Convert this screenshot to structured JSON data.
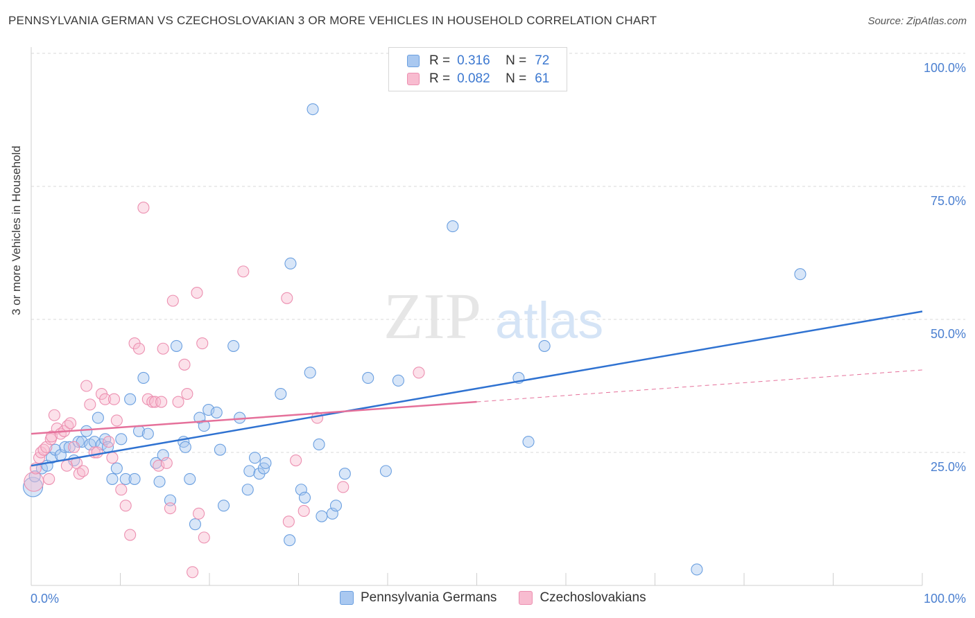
{
  "header": {
    "title": "PENNSYLVANIA GERMAN VS CZECHOSLOVAKIAN 3 OR MORE VEHICLES IN HOUSEHOLD CORRELATION CHART",
    "source": "Source: ZipAtlas.com"
  },
  "watermark": {
    "zip": "ZIP",
    "atlas": "atlas"
  },
  "legend": {
    "r_label": "R =",
    "n_label": "N =",
    "blue": {
      "r": "0.316",
      "n": "72"
    },
    "pink": {
      "r": "0.082",
      "n": "61"
    }
  },
  "colors": {
    "blue_fill": "#a9c8f0",
    "blue_stroke": "#6a9fe0",
    "blue_line": "#2f72d1",
    "pink_fill": "#f8bcd0",
    "pink_stroke": "#ec8fb0",
    "pink_line": "#e5709a",
    "grid": "#d9d9d9",
    "tick_text": "#4a7fd0"
  },
  "chart_data": {
    "type": "scatter",
    "title": "PENNSYLVANIA GERMAN VS CZECHOSLOVAKIAN 3 OR MORE VEHICLES IN HOUSEHOLD CORRELATION CHART",
    "ylabel": "3 or more Vehicles in Household",
    "xlabel": "",
    "xlim": [
      0,
      100
    ],
    "ylim": [
      0,
      100
    ],
    "x_ticks": [
      "0.0%",
      "100.0%"
    ],
    "y_ticks": [
      "25.0%",
      "50.0%",
      "75.0%",
      "100.0%"
    ],
    "grid": true,
    "legend_position": "bottom-center",
    "series": [
      {
        "name": "Pennsylvania Germans",
        "color": "#a9c8f0",
        "points": [
          [
            0.2,
            18.5
          ],
          [
            0.4,
            20.5
          ],
          [
            1.2,
            22
          ],
          [
            1.8,
            22.5
          ],
          [
            2.3,
            24
          ],
          [
            2.7,
            25.5
          ],
          [
            3.3,
            24.5
          ],
          [
            3.8,
            26
          ],
          [
            4.3,
            26
          ],
          [
            4.8,
            23.5
          ],
          [
            5.3,
            27
          ],
          [
            5.7,
            27
          ],
          [
            6.2,
            29
          ],
          [
            6.6,
            26.5
          ],
          [
            7.1,
            27
          ],
          [
            7.5,
            31.5
          ],
          [
            7.9,
            26.5
          ],
          [
            8.3,
            27.5
          ],
          [
            8.6,
            26
          ],
          [
            9.1,
            20
          ],
          [
            9.6,
            22
          ],
          [
            10.1,
            27.5
          ],
          [
            10.6,
            20
          ],
          [
            11.1,
            35
          ],
          [
            11.6,
            20
          ],
          [
            12.1,
            29
          ],
          [
            12.6,
            39
          ],
          [
            13.1,
            28.5
          ],
          [
            14,
            23
          ],
          [
            14.4,
            19.5
          ],
          [
            14.8,
            24.5
          ],
          [
            15.6,
            16
          ],
          [
            16.3,
            45
          ],
          [
            17.1,
            27
          ],
          [
            17.3,
            26
          ],
          [
            17.8,
            20
          ],
          [
            18.4,
            11.5
          ],
          [
            18.9,
            31.5
          ],
          [
            19.4,
            30
          ],
          [
            19.9,
            33
          ],
          [
            20.8,
            32.5
          ],
          [
            21.2,
            25.5
          ],
          [
            21.6,
            15
          ],
          [
            22.7,
            45
          ],
          [
            23.4,
            31.5
          ],
          [
            24.3,
            18
          ],
          [
            24.5,
            21.5
          ],
          [
            25.1,
            24
          ],
          [
            25.6,
            21
          ],
          [
            26.1,
            22
          ],
          [
            26.3,
            23
          ],
          [
            28,
            36
          ],
          [
            29,
            8.5
          ],
          [
            29.1,
            60.5
          ],
          [
            30.3,
            18
          ],
          [
            30.7,
            16.5
          ],
          [
            31.3,
            40
          ],
          [
            31.6,
            89.5
          ],
          [
            32.3,
            26.5
          ],
          [
            32.6,
            13
          ],
          [
            33.8,
            13.5
          ],
          [
            34.2,
            15
          ],
          [
            35.2,
            21
          ],
          [
            37.8,
            39
          ],
          [
            39.8,
            21.5
          ],
          [
            41.2,
            38.5
          ],
          [
            47.3,
            67.5
          ],
          [
            54.7,
            39
          ],
          [
            55.8,
            27
          ],
          [
            57.6,
            45
          ],
          [
            74.7,
            3
          ],
          [
            86.3,
            58.5
          ]
        ]
      },
      {
        "name": "Czechoslovakians",
        "color": "#f8bcd0",
        "points": [
          [
            0.3,
            19.5
          ],
          [
            0.5,
            22
          ],
          [
            0.9,
            24
          ],
          [
            1.1,
            25
          ],
          [
            1.4,
            25.5
          ],
          [
            1.7,
            26
          ],
          [
            2.2,
            27.5
          ],
          [
            2.3,
            28
          ],
          [
            2.6,
            32
          ],
          [
            2.9,
            29.5
          ],
          [
            3.3,
            28.5
          ],
          [
            3.7,
            29
          ],
          [
            4.1,
            30
          ],
          [
            4.4,
            30.5
          ],
          [
            4.8,
            26
          ],
          [
            5.1,
            23
          ],
          [
            5.4,
            21
          ],
          [
            5.8,
            21.5
          ],
          [
            6.2,
            37.5
          ],
          [
            6.6,
            34
          ],
          [
            7.1,
            25
          ],
          [
            7.4,
            25
          ],
          [
            7.9,
            36
          ],
          [
            8.3,
            35
          ],
          [
            8.7,
            27
          ],
          [
            9.1,
            24
          ],
          [
            9.3,
            35
          ],
          [
            9.6,
            31
          ],
          [
            10.1,
            18
          ],
          [
            10.6,
            15
          ],
          [
            11.1,
            9.5
          ],
          [
            11.6,
            45.5
          ],
          [
            12.1,
            44.5
          ],
          [
            12.6,
            71
          ],
          [
            13.1,
            35
          ],
          [
            13.6,
            34.5
          ],
          [
            13.9,
            34.5
          ],
          [
            14.3,
            22.5
          ],
          [
            14.6,
            34.5
          ],
          [
            14.8,
            44.5
          ],
          [
            15.2,
            23
          ],
          [
            15.6,
            14.5
          ],
          [
            15.9,
            53.5
          ],
          [
            16.5,
            34.5
          ],
          [
            17.2,
            41.5
          ],
          [
            17.5,
            36
          ],
          [
            18.1,
            2.5
          ],
          [
            18.6,
            55
          ],
          [
            18.8,
            13.5
          ],
          [
            19.2,
            45.5
          ],
          [
            19.4,
            9
          ],
          [
            23.8,
            59
          ],
          [
            28.7,
            54
          ],
          [
            28.9,
            12
          ],
          [
            29.7,
            23.5
          ],
          [
            30.6,
            14
          ],
          [
            32.1,
            31.5
          ],
          [
            35,
            18.5
          ],
          [
            43.5,
            40
          ],
          [
            2.0,
            20
          ],
          [
            4.0,
            22.5
          ]
        ]
      }
    ],
    "trendlines": [
      {
        "series": "Pennsylvania Germans",
        "x": [
          0,
          100
        ],
        "y": [
          22.5,
          51.5
        ]
      },
      {
        "series": "Czechoslovakians",
        "x": [
          0,
          50
        ],
        "y": [
          28.5,
          34.5
        ]
      },
      {
        "series": "Czechoslovakians",
        "x": [
          50,
          100
        ],
        "y": [
          34.5,
          40.5
        ],
        "dashed": true
      }
    ]
  }
}
